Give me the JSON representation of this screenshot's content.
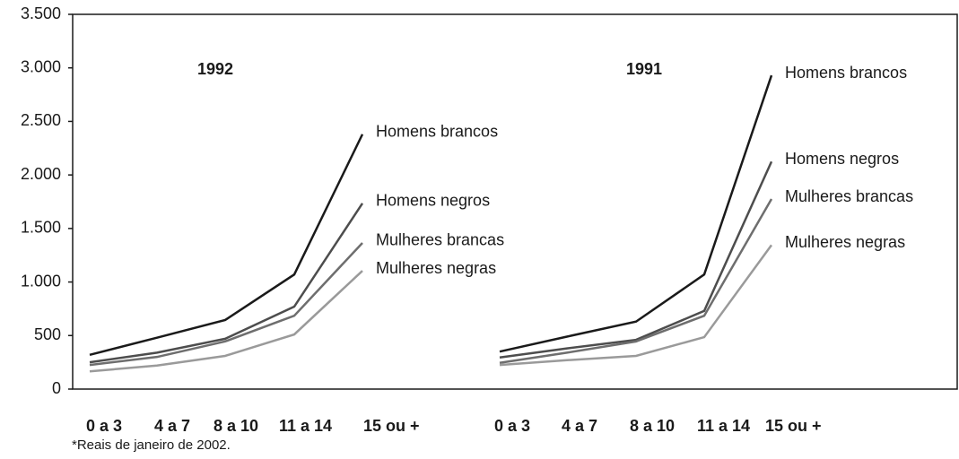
{
  "chart_data": {
    "type": "line",
    "ylim": [
      0,
      3500
    ],
    "yticks": [
      0,
      500,
      {
        "value": 1000,
        "label": "1.000"
      },
      {
        "value": 1500,
        "label": "1.500"
      },
      {
        "value": 2000,
        "label": "2.000"
      },
      {
        "value": 2500,
        "label": "2.500"
      },
      {
        "value": 3000,
        "label": "3.000"
      },
      {
        "value": 3500,
        "label": "3.500"
      }
    ],
    "footnote": "*Reais de janeiro de 2002.",
    "panels": [
      {
        "title": "1992",
        "categories": [
          "0 a 3",
          "4 a 7",
          "8 a 10",
          "11 a 14",
          "15 ou +"
        ],
        "series": [
          {
            "name": "Homens brancos",
            "color": "#1a1a1a",
            "values": [
              320,
              480,
              645,
              1070,
              2380
            ]
          },
          {
            "name": "Homens negros",
            "color": "#4d4d4d",
            "values": [
              250,
              340,
              470,
              770,
              1735
            ]
          },
          {
            "name": "Mulheres brancas",
            "color": "#6e6e6e",
            "values": [
              225,
              300,
              445,
              685,
              1365
            ]
          },
          {
            "name": "Mulheres negras",
            "color": "#9a9a9a",
            "values": [
              165,
              220,
              310,
              510,
              1105
            ]
          }
        ]
      },
      {
        "title": "1991",
        "categories": [
          "0 a 3",
          "4 a 7",
          "8 a 10",
          "11 a 14",
          "15 ou +"
        ],
        "series": [
          {
            "name": "Homens brancos",
            "color": "#1a1a1a",
            "values": [
              350,
              490,
              630,
              1070,
              2930
            ]
          },
          {
            "name": "Homens negros",
            "color": "#4d4d4d",
            "values": [
              295,
              380,
              460,
              730,
              2125
            ]
          },
          {
            "name": "Mulheres brancas",
            "color": "#6e6e6e",
            "values": [
              245,
              340,
              445,
              685,
              1775
            ]
          },
          {
            "name": "Mulheres negras",
            "color": "#9a9a9a",
            "values": [
              225,
              270,
              310,
              485,
              1345
            ]
          }
        ]
      }
    ]
  }
}
